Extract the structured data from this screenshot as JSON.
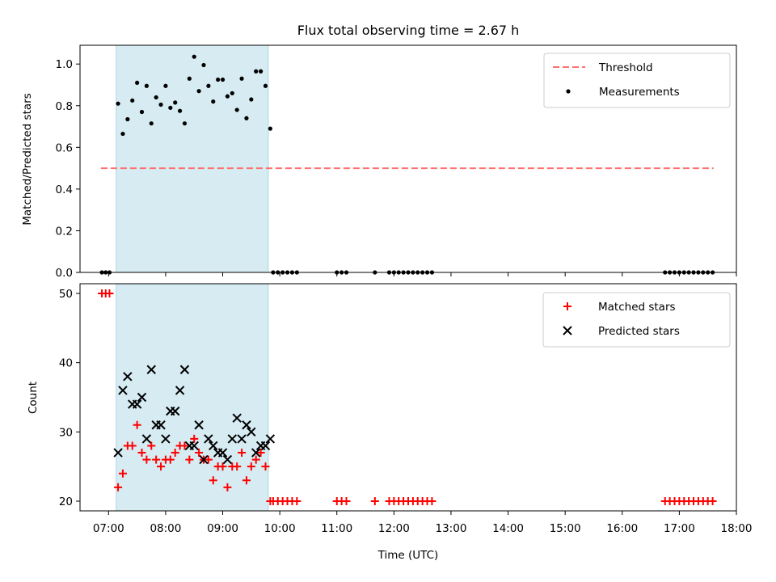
{
  "chart_data": [
    {
      "type": "scatter",
      "title": "Flux total observing time = 2.67 h",
      "xlabel": "",
      "ylabel": "Matched/Predicted stars",
      "xlim": [
        "06:30",
        "18:00"
      ],
      "ylim": [
        0,
        1.09
      ],
      "yticks": [
        0.0,
        0.2,
        0.4,
        0.6,
        0.8,
        1.0
      ],
      "yticklabels": [
        "0.0",
        "0.2",
        "0.4",
        "0.6",
        "0.8",
        "1.0"
      ],
      "highlight_span": {
        "x0": "07:08",
        "x1": "09:48",
        "color": "#add8e6"
      },
      "threshold": {
        "name": "Threshold",
        "value": 0.5,
        "x0": "06:52",
        "x1": "17:36",
        "color": "#ff7070",
        "style": "dashed"
      },
      "legend": {
        "position": "upper right",
        "entries": [
          "Threshold",
          "Measurements"
        ]
      },
      "series": [
        {
          "name": "Measurements",
          "marker": "dot",
          "color": "#000000",
          "points": [
            [
              "06:53",
              0
            ],
            [
              "06:57",
              0
            ],
            [
              "07:01",
              0
            ],
            [
              "07:10",
              0.81
            ],
            [
              "07:15",
              0.665
            ],
            [
              "07:20",
              0.735
            ],
            [
              "07:25",
              0.825
            ],
            [
              "07:30",
              0.91
            ],
            [
              "07:35",
              0.77
            ],
            [
              "07:40",
              0.895
            ],
            [
              "07:45",
              0.715
            ],
            [
              "07:50",
              0.84
            ],
            [
              "07:55",
              0.805
            ],
            [
              "08:00",
              0.895
            ],
            [
              "08:05",
              0.79
            ],
            [
              "08:10",
              0.815
            ],
            [
              "08:15",
              0.775
            ],
            [
              "08:20",
              0.715
            ],
            [
              "08:25",
              0.93
            ],
            [
              "08:30",
              1.035
            ],
            [
              "08:35",
              0.87
            ],
            [
              "08:40",
              0.995
            ],
            [
              "08:45",
              0.895
            ],
            [
              "08:50",
              0.82
            ],
            [
              "08:55",
              0.925
            ],
            [
              "09:00",
              0.925
            ],
            [
              "09:05",
              0.845
            ],
            [
              "09:10",
              0.86
            ],
            [
              "09:15",
              0.78
            ],
            [
              "09:20",
              0.93
            ],
            [
              "09:25",
              0.74
            ],
            [
              "09:30",
              0.83
            ],
            [
              "09:35",
              0.965
            ],
            [
              "09:40",
              0.965
            ],
            [
              "09:45",
              0.895
            ],
            [
              "09:50",
              0.69
            ],
            [
              "09:53",
              0
            ],
            [
              "09:58",
              0
            ],
            [
              "10:03",
              0
            ],
            [
              "10:08",
              0
            ],
            [
              "10:13",
              0
            ],
            [
              "10:18",
              0
            ],
            [
              "11:00",
              0
            ],
            [
              "11:05",
              0
            ],
            [
              "11:10",
              0
            ],
            [
              "11:40",
              0
            ],
            [
              "11:55",
              0
            ],
            [
              "12:00",
              0
            ],
            [
              "12:05",
              0
            ],
            [
              "12:10",
              0
            ],
            [
              "12:15",
              0
            ],
            [
              "12:20",
              0
            ],
            [
              "12:25",
              0
            ],
            [
              "12:30",
              0
            ],
            [
              "12:35",
              0
            ],
            [
              "12:40",
              0
            ],
            [
              "16:45",
              0
            ],
            [
              "16:50",
              0
            ],
            [
              "16:55",
              0
            ],
            [
              "17:00",
              0
            ],
            [
              "17:05",
              0
            ],
            [
              "17:10",
              0
            ],
            [
              "17:15",
              0
            ],
            [
              "17:20",
              0
            ],
            [
              "17:25",
              0
            ],
            [
              "17:30",
              0
            ],
            [
              "17:35",
              0
            ]
          ]
        }
      ]
    },
    {
      "type": "scatter",
      "title": "",
      "xlabel": "Time (UTC)",
      "ylabel": "Count",
      "xlim": [
        "06:30",
        "18:00"
      ],
      "ylim": [
        18.6,
        51.4
      ],
      "yticks": [
        20,
        30,
        40,
        50
      ],
      "yticklabels": [
        "20",
        "30",
        "40",
        "50"
      ],
      "xticks": [
        "07:00",
        "08:00",
        "09:00",
        "10:00",
        "11:00",
        "12:00",
        "13:00",
        "14:00",
        "15:00",
        "16:00",
        "17:00",
        "18:00"
      ],
      "xticklabels": [
        "07:00",
        "08:00",
        "09:00",
        "10:00",
        "11:00",
        "12:00",
        "13:00",
        "14:00",
        "15:00",
        "16:00",
        "17:00",
        "18:00"
      ],
      "highlight_span": {
        "x0": "07:08",
        "x1": "09:48",
        "color": "#add8e6"
      },
      "legend": {
        "position": "upper right",
        "entries": [
          "Matched stars",
          "Predicted stars"
        ]
      },
      "series": [
        {
          "name": "Matched stars",
          "marker": "plus",
          "color": "#ff0000",
          "points": [
            [
              "06:53",
              50
            ],
            [
              "06:57",
              50
            ],
            [
              "07:01",
              50
            ],
            [
              "07:10",
              22
            ],
            [
              "07:15",
              24
            ],
            [
              "07:20",
              28
            ],
            [
              "07:25",
              28
            ],
            [
              "07:30",
              31
            ],
            [
              "07:35",
              27
            ],
            [
              "07:40",
              26
            ],
            [
              "07:45",
              28
            ],
            [
              "07:50",
              26
            ],
            [
              "07:55",
              25
            ],
            [
              "08:00",
              26
            ],
            [
              "08:05",
              26
            ],
            [
              "08:10",
              27
            ],
            [
              "08:15",
              28
            ],
            [
              "08:20",
              28
            ],
            [
              "08:25",
              26
            ],
            [
              "08:30",
              29
            ],
            [
              "08:35",
              27
            ],
            [
              "08:40",
              26
            ],
            [
              "08:45",
              26
            ],
            [
              "08:50",
              23
            ],
            [
              "08:55",
              25
            ],
            [
              "09:00",
              25
            ],
            [
              "09:05",
              22
            ],
            [
              "09:10",
              25
            ],
            [
              "09:15",
              25
            ],
            [
              "09:20",
              27
            ],
            [
              "09:25",
              23
            ],
            [
              "09:30",
              25
            ],
            [
              "09:35",
              26
            ],
            [
              "09:40",
              27
            ],
            [
              "09:45",
              25
            ],
            [
              "09:50",
              20
            ],
            [
              "09:53",
              20
            ],
            [
              "09:58",
              20
            ],
            [
              "10:03",
              20
            ],
            [
              "10:08",
              20
            ],
            [
              "10:13",
              20
            ],
            [
              "10:18",
              20
            ],
            [
              "11:00",
              20
            ],
            [
              "11:05",
              20
            ],
            [
              "11:10",
              20
            ],
            [
              "11:40",
              20
            ],
            [
              "11:55",
              20
            ],
            [
              "12:00",
              20
            ],
            [
              "12:05",
              20
            ],
            [
              "12:10",
              20
            ],
            [
              "12:15",
              20
            ],
            [
              "12:20",
              20
            ],
            [
              "12:25",
              20
            ],
            [
              "12:30",
              20
            ],
            [
              "12:35",
              20
            ],
            [
              "12:40",
              20
            ],
            [
              "16:45",
              20
            ],
            [
              "16:50",
              20
            ],
            [
              "16:55",
              20
            ],
            [
              "17:00",
              20
            ],
            [
              "17:05",
              20
            ],
            [
              "17:10",
              20
            ],
            [
              "17:15",
              20
            ],
            [
              "17:20",
              20
            ],
            [
              "17:25",
              20
            ],
            [
              "17:30",
              20
            ],
            [
              "17:35",
              20
            ]
          ]
        },
        {
          "name": "Predicted stars",
          "marker": "x",
          "color": "#000000",
          "points": [
            [
              "07:10",
              27
            ],
            [
              "07:15",
              36
            ],
            [
              "07:20",
              38
            ],
            [
              "07:25",
              34
            ],
            [
              "07:30",
              34
            ],
            [
              "07:35",
              35
            ],
            [
              "07:40",
              29
            ],
            [
              "07:45",
              39
            ],
            [
              "07:50",
              31
            ],
            [
              "07:55",
              31
            ],
            [
              "08:00",
              29
            ],
            [
              "08:05",
              33
            ],
            [
              "08:10",
              33
            ],
            [
              "08:15",
              36
            ],
            [
              "08:20",
              39
            ],
            [
              "08:25",
              28
            ],
            [
              "08:30",
              28
            ],
            [
              "08:35",
              31
            ],
            [
              "08:40",
              26
            ],
            [
              "08:45",
              29
            ],
            [
              "08:50",
              28
            ],
            [
              "08:55",
              27
            ],
            [
              "09:00",
              27
            ],
            [
              "09:05",
              26
            ],
            [
              "09:10",
              29
            ],
            [
              "09:15",
              32
            ],
            [
              "09:20",
              29
            ],
            [
              "09:25",
              31
            ],
            [
              "09:30",
              30
            ],
            [
              "09:35",
              27
            ],
            [
              "09:40",
              28
            ],
            [
              "09:45",
              28
            ],
            [
              "09:50",
              29
            ]
          ]
        }
      ]
    }
  ]
}
